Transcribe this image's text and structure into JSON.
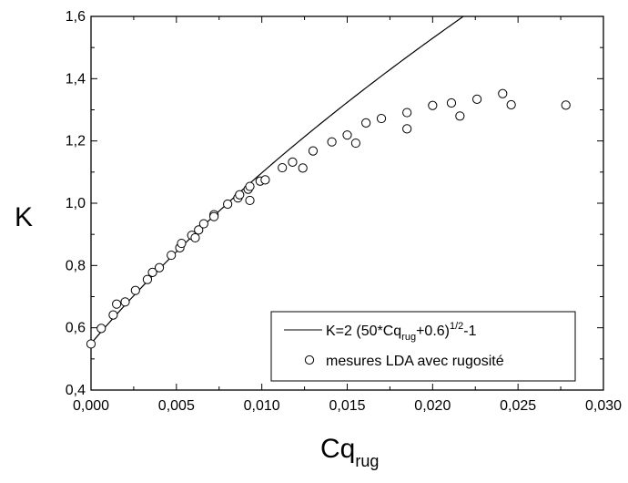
{
  "chart_data": {
    "type": "scatter",
    "title": "",
    "xlabel": {
      "main": "Cq",
      "sub": "rug"
    },
    "ylabel": "K",
    "xlim": [
      0,
      0.03
    ],
    "ylim": [
      0.4,
      1.6
    ],
    "grid": false,
    "legend_position": "bottom-right",
    "x_ticks": [
      0,
      0.005,
      0.01,
      0.015,
      0.02,
      0.025,
      0.03
    ],
    "y_ticks": [
      0.4,
      0.6,
      0.8,
      1.0,
      1.2,
      1.4,
      1.6
    ],
    "x_tick_labels": [
      "0,000",
      "0,005",
      "0,010",
      "0,015",
      "0,020",
      "0,025",
      "0,030"
    ],
    "y_tick_labels": [
      "0,4",
      "0,6",
      "0,8",
      "1,0",
      "1,2",
      "1,4",
      "1,6"
    ],
    "series": [
      {
        "kind": "line",
        "equation": "K = 2*sqrt(50*Cq_rug + 0.6) - 1",
        "legend": {
          "prefix": "K=2 (50*Cq",
          "sub": "rug",
          "mid": "+0.6)",
          "sup": "1/2",
          "suffix": "-1"
        }
      },
      {
        "kind": "scatter",
        "marker": "open-circle",
        "legend": {
          "label": "mesures LDA avec rugosité"
        },
        "points": [
          [
            0.0,
            0.548
          ],
          [
            0.0006,
            0.598
          ],
          [
            0.0013,
            0.641
          ],
          [
            0.0015,
            0.676
          ],
          [
            0.002,
            0.683
          ],
          [
            0.0026,
            0.72
          ],
          [
            0.0033,
            0.755
          ],
          [
            0.0036,
            0.778
          ],
          [
            0.004,
            0.793
          ],
          [
            0.0047,
            0.833
          ],
          [
            0.0052,
            0.857
          ],
          [
            0.0053,
            0.871
          ],
          [
            0.0059,
            0.897
          ],
          [
            0.0061,
            0.889
          ],
          [
            0.0063,
            0.914
          ],
          [
            0.0066,
            0.934
          ],
          [
            0.0072,
            0.963
          ],
          [
            0.0072,
            0.957
          ],
          [
            0.008,
            0.997
          ],
          [
            0.0086,
            1.017
          ],
          [
            0.0087,
            1.027
          ],
          [
            0.0092,
            1.045
          ],
          [
            0.0093,
            1.054
          ],
          [
            0.0093,
            1.009
          ],
          [
            0.0099,
            1.071
          ],
          [
            0.0102,
            1.075
          ],
          [
            0.0112,
            1.114
          ],
          [
            0.0118,
            1.132
          ],
          [
            0.0124,
            1.113
          ],
          [
            0.013,
            1.168
          ],
          [
            0.0141,
            1.197
          ],
          [
            0.015,
            1.219
          ],
          [
            0.0155,
            1.193
          ],
          [
            0.0161,
            1.258
          ],
          [
            0.017,
            1.272
          ],
          [
            0.0185,
            1.291
          ],
          [
            0.0185,
            1.239
          ],
          [
            0.02,
            1.314
          ],
          [
            0.0211,
            1.322
          ],
          [
            0.0216,
            1.28
          ],
          [
            0.0226,
            1.334
          ],
          [
            0.0241,
            1.352
          ],
          [
            0.0246,
            1.316
          ],
          [
            0.0278,
            1.315
          ]
        ]
      }
    ]
  }
}
